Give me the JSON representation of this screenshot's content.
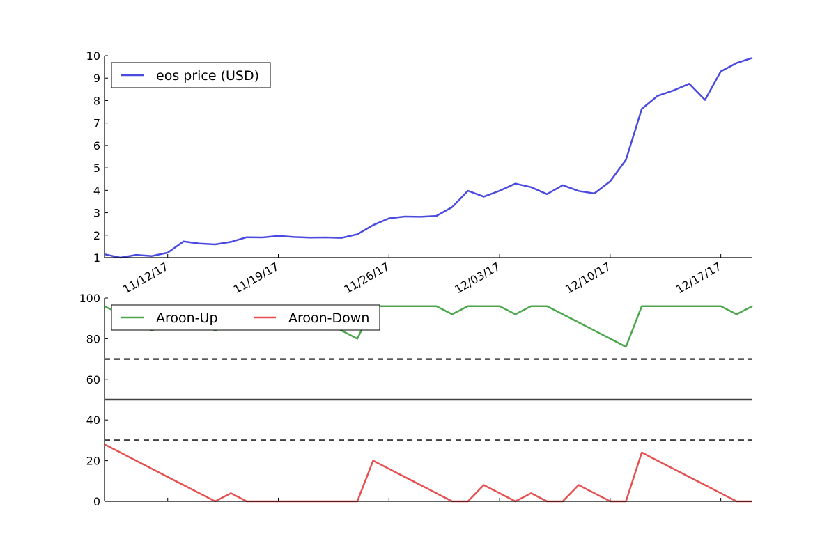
{
  "chart_data": [
    {
      "type": "line",
      "x": [
        "11/08/17",
        "11/09/17",
        "11/10/17",
        "11/11/17",
        "11/12/17",
        "11/13/17",
        "11/14/17",
        "11/15/17",
        "11/16/17",
        "11/17/17",
        "11/18/17",
        "11/19/17",
        "11/20/17",
        "11/21/17",
        "11/22/17",
        "11/23/17",
        "11/24/17",
        "11/25/17",
        "11/26/17",
        "11/27/17",
        "11/28/17",
        "11/29/17",
        "11/30/17",
        "12/01/17",
        "12/02/17",
        "12/03/17",
        "12/04/17",
        "12/05/17",
        "12/06/17",
        "12/07/17",
        "12/08/17",
        "12/09/17",
        "12/10/17",
        "12/11/17",
        "12/12/17",
        "12/13/17",
        "12/14/17",
        "12/15/17",
        "12/16/17",
        "12/17/17",
        "12/18/17",
        "12/19/17"
      ],
      "series": [
        {
          "name": "eos price (USD)",
          "color": "#4a4ae0",
          "values": [
            1.15,
            1.0,
            1.12,
            1.07,
            1.22,
            1.72,
            1.63,
            1.59,
            1.7,
            1.91,
            1.9,
            1.97,
            1.92,
            1.89,
            1.9,
            1.88,
            2.04,
            2.45,
            2.75,
            2.83,
            2.82,
            2.86,
            3.25,
            3.98,
            3.72,
            3.98,
            4.3,
            4.14,
            3.83,
            4.23,
            3.97,
            3.86,
            4.4,
            5.36,
            7.63,
            8.21,
            8.45,
            8.75,
            8.03,
            9.3,
            9.67,
            9.9
          ]
        }
      ],
      "xlim": [
        "11/08/17",
        "12/19/17"
      ],
      "ylim": [
        1,
        10
      ],
      "yticks": [
        1,
        2,
        3,
        4,
        5,
        6,
        7,
        8,
        9,
        10
      ],
      "xticks": [
        "11/12/17",
        "11/19/17",
        "11/26/17",
        "12/03/17",
        "12/10/17",
        "12/17/17"
      ],
      "legend_position": "upper-left",
      "grid": false
    },
    {
      "type": "line",
      "x": [
        "11/08/17",
        "11/09/17",
        "11/10/17",
        "11/11/17",
        "11/12/17",
        "11/13/17",
        "11/14/17",
        "11/15/17",
        "11/16/17",
        "11/17/17",
        "11/18/17",
        "11/19/17",
        "11/20/17",
        "11/21/17",
        "11/22/17",
        "11/23/17",
        "11/24/17",
        "11/25/17",
        "11/26/17",
        "11/27/17",
        "11/28/17",
        "11/29/17",
        "11/30/17",
        "12/01/17",
        "12/02/17",
        "12/03/17",
        "12/04/17",
        "12/05/17",
        "12/06/17",
        "12/07/17",
        "12/08/17",
        "12/09/17",
        "12/10/17",
        "12/11/17",
        "12/12/17",
        "12/13/17",
        "12/14/17",
        "12/15/17",
        "12/16/17",
        "12/17/17",
        "12/18/17",
        "12/19/17"
      ],
      "series": [
        {
          "name": "Aroon-Up",
          "color": "#4ca64c",
          "values": [
            96,
            92,
            88,
            84,
            88,
            92,
            88,
            84,
            88,
            96,
            96,
            96,
            96,
            92,
            88,
            84,
            80,
            96,
            96,
            96,
            96,
            96,
            92,
            96,
            96,
            96,
            92,
            96,
            96,
            92,
            88,
            84,
            80,
            76,
            96,
            96,
            96,
            96,
            96,
            96,
            92,
            96
          ]
        },
        {
          "name": "Aroon-Down",
          "color": "#e65050",
          "values": [
            28,
            24,
            20,
            16,
            12,
            8,
            4,
            0,
            4,
            0,
            0,
            0,
            0,
            0,
            0,
            0,
            0,
            20,
            16,
            12,
            8,
            4,
            0,
            0,
            8,
            4,
            0,
            4,
            0,
            0,
            8,
            4,
            0,
            0,
            24,
            20,
            16,
            12,
            8,
            4,
            0,
            0
          ]
        }
      ],
      "xlim": [
        "11/08/17",
        "12/19/17"
      ],
      "ylim": [
        0,
        100
      ],
      "yticks": [
        0,
        20,
        40,
        60,
        80,
        100
      ],
      "reference_lines": [
        {
          "y": 70,
          "style": "dashed",
          "color": "#404040"
        },
        {
          "y": 50,
          "style": "solid",
          "color": "#404040"
        },
        {
          "y": 30,
          "style": "dashed",
          "color": "#404040"
        }
      ],
      "legend_position": "upper-left",
      "grid": false
    }
  ]
}
